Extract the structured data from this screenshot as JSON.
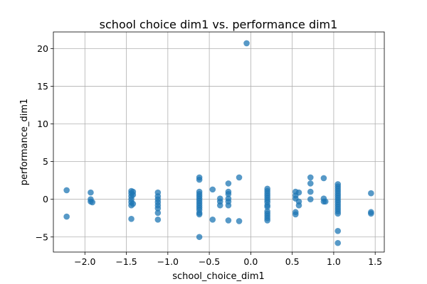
{
  "chart_data": {
    "type": "scatter",
    "title": "school choice dim1 vs. performance dim1",
    "xlabel": "school_choice_dim1",
    "ylabel": "performance_dim1",
    "xlim": [
      -2.38,
      1.61
    ],
    "ylim": [
      -7.0,
      22.2
    ],
    "xticks": [
      -2.0,
      -1.5,
      -1.0,
      -0.5,
      0.0,
      0.5,
      1.0,
      1.5
    ],
    "xtick_labels": [
      "−2.0",
      "−1.5",
      "−1.0",
      "−0.5",
      "0.0",
      "0.5",
      "1.0",
      "1.5"
    ],
    "yticks": [
      -5,
      0,
      5,
      10,
      15,
      20
    ],
    "ytick_labels": [
      "−5",
      "0",
      "5",
      "10",
      "15",
      "20"
    ],
    "grid": true,
    "marker_color": "#1f77b4",
    "series": [
      {
        "name": "points",
        "points": [
          [
            -2.22,
            1.2
          ],
          [
            -2.22,
            -2.3
          ],
          [
            -1.93,
            0.9
          ],
          [
            -1.93,
            0.0
          ],
          [
            -1.93,
            -0.3
          ],
          [
            -1.91,
            -0.4
          ],
          [
            -1.44,
            1.1
          ],
          [
            -1.44,
            0.8
          ],
          [
            -1.44,
            0.4
          ],
          [
            -1.44,
            0.0
          ],
          [
            -1.44,
            -0.4
          ],
          [
            -1.44,
            -0.8
          ],
          [
            -1.44,
            -2.6
          ],
          [
            -1.42,
            1.0
          ],
          [
            -1.42,
            0.6
          ],
          [
            -1.42,
            -0.6
          ],
          [
            -1.12,
            0.9
          ],
          [
            -1.12,
            0.4
          ],
          [
            -1.12,
            0.0
          ],
          [
            -1.12,
            -0.4
          ],
          [
            -1.12,
            -0.8
          ],
          [
            -1.12,
            -1.2
          ],
          [
            -1.12,
            -1.8
          ],
          [
            -1.12,
            -2.7
          ],
          [
            -0.62,
            2.9
          ],
          [
            -0.62,
            2.6
          ],
          [
            -0.62,
            1.0
          ],
          [
            -0.62,
            0.7
          ],
          [
            -0.62,
            0.4
          ],
          [
            -0.62,
            0.1
          ],
          [
            -0.62,
            -0.2
          ],
          [
            -0.62,
            -0.5
          ],
          [
            -0.62,
            -0.8
          ],
          [
            -0.62,
            -1.1
          ],
          [
            -0.62,
            -1.4
          ],
          [
            -0.62,
            -1.8
          ],
          [
            -0.62,
            -2.0
          ],
          [
            -0.62,
            -5.0
          ],
          [
            -0.46,
            1.3
          ],
          [
            -0.46,
            -2.7
          ],
          [
            -0.37,
            0.1
          ],
          [
            -0.37,
            -0.3
          ],
          [
            -0.37,
            -0.8
          ],
          [
            -0.27,
            2.1
          ],
          [
            -0.27,
            1.0
          ],
          [
            -0.27,
            0.7
          ],
          [
            -0.27,
            0.1
          ],
          [
            -0.27,
            -0.3
          ],
          [
            -0.27,
            -0.8
          ],
          [
            -0.27,
            -2.8
          ],
          [
            -0.14,
            2.9
          ],
          [
            -0.14,
            -2.9
          ],
          [
            -0.05,
            20.7
          ],
          [
            0.2,
            1.4
          ],
          [
            0.2,
            1.1
          ],
          [
            0.2,
            0.8
          ],
          [
            0.2,
            0.5
          ],
          [
            0.2,
            0.2
          ],
          [
            0.2,
            -0.1
          ],
          [
            0.2,
            -0.4
          ],
          [
            0.2,
            -0.8
          ],
          [
            0.2,
            -1.0
          ],
          [
            0.2,
            -1.6
          ],
          [
            0.2,
            -1.9
          ],
          [
            0.2,
            -2.2
          ],
          [
            0.2,
            -2.5
          ],
          [
            0.2,
            -2.8
          ],
          [
            0.54,
            1.0
          ],
          [
            0.54,
            0.5
          ],
          [
            0.54,
            0.1
          ],
          [
            0.54,
            -1.7
          ],
          [
            0.54,
            -2.0
          ],
          [
            0.58,
            0.9
          ],
          [
            0.58,
            -0.3
          ],
          [
            0.58,
            -0.8
          ],
          [
            0.72,
            2.9
          ],
          [
            0.72,
            2.1
          ],
          [
            0.72,
            1.0
          ],
          [
            0.72,
            0.0
          ],
          [
            0.88,
            2.8
          ],
          [
            0.88,
            0.1
          ],
          [
            0.88,
            -0.3
          ],
          [
            0.9,
            -0.3
          ],
          [
            1.05,
            2.0
          ],
          [
            1.05,
            1.7
          ],
          [
            1.05,
            1.4
          ],
          [
            1.05,
            1.1
          ],
          [
            1.05,
            0.8
          ],
          [
            1.05,
            0.5
          ],
          [
            1.05,
            0.2
          ],
          [
            1.05,
            -0.1
          ],
          [
            1.05,
            -0.4
          ],
          [
            1.05,
            -0.7
          ],
          [
            1.05,
            -1.0
          ],
          [
            1.05,
            -1.3
          ],
          [
            1.05,
            -1.6
          ],
          [
            1.05,
            -1.9
          ],
          [
            1.05,
            -4.2
          ],
          [
            1.05,
            -5.8
          ],
          [
            1.45,
            0.8
          ],
          [
            1.45,
            -1.7
          ],
          [
            1.45,
            -1.9
          ]
        ]
      }
    ]
  }
}
